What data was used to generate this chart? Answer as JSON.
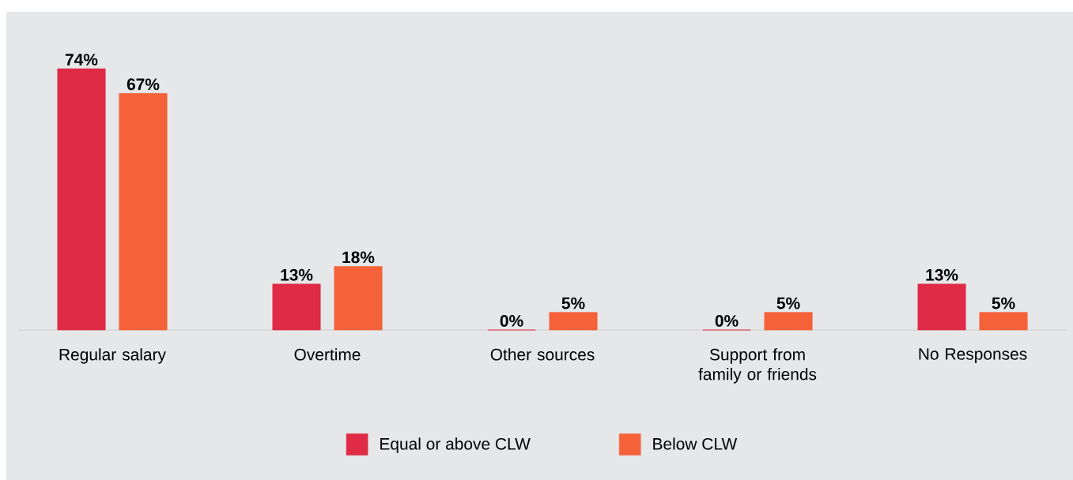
{
  "chart_data": {
    "type": "bar",
    "categories": [
      "Regular salary",
      "Overtime",
      "Other sources",
      "Support from family or friends",
      "No Responses"
    ],
    "series": [
      {
        "name": "Equal or above CLW",
        "color": "#e02b46",
        "values": [
          74,
          13,
          0,
          0,
          13
        ],
        "value_labels": [
          "74%",
          "13%",
          "0%",
          "0%",
          "13%"
        ]
      },
      {
        "name": "Below CLW",
        "color": "#f5623a",
        "values": [
          67,
          18,
          5,
          5,
          5
        ],
        "value_labels": [
          "67%",
          "18%",
          "5%",
          "5%",
          "5%"
        ]
      }
    ],
    "legend": "bottom"
  }
}
